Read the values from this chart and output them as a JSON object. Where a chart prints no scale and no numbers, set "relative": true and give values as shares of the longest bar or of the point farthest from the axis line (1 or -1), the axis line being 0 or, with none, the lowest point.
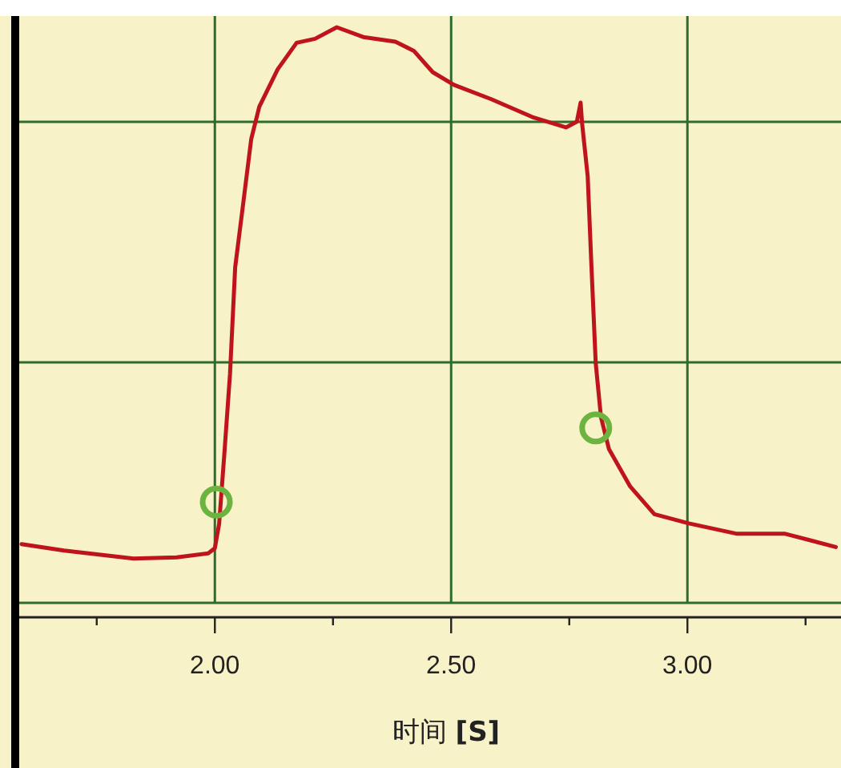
{
  "chart_data": {
    "type": "line",
    "relative": true,
    "xlabel": "时间 **[S]**",
    "xlim": [
      1.586,
      3.325
    ],
    "xticks": [
      {
        "value": 1.75,
        "label": null
      },
      {
        "value": 2,
        "label": "2.00"
      },
      {
        "value": 2.25,
        "label": null
      },
      {
        "value": 2.5,
        "label": "2.50"
      },
      {
        "value": 2.75,
        "label": null
      },
      {
        "value": 3,
        "label": "3.00"
      },
      {
        "value": 3.25,
        "label": null
      }
    ],
    "grid": true,
    "line_style": "solid",
    "series": [
      {
        "type": "line",
        "color": "#c0141c",
        "marker": "none",
        "x": [
          1.591,
          1.681,
          1.828,
          1.919,
          1.986,
          2.0,
          2.009,
          2.02,
          2.032,
          2.043,
          2.06,
          2.077,
          2.094,
          2.133,
          2.173,
          2.212,
          2.258,
          2.314,
          2.382,
          2.421,
          2.461,
          2.506,
          2.585,
          2.675,
          2.743,
          2.766,
          2.774,
          2.777,
          2.789,
          2.797,
          2.806,
          2.817,
          2.834,
          2.879,
          2.93,
          3.003,
          3.105,
          3.207,
          3.314
        ],
        "values": [
          0.102,
          0.091,
          0.077,
          0.079,
          0.086,
          0.095,
          0.137,
          0.258,
          0.397,
          0.583,
          0.694,
          0.806,
          0.862,
          0.927,
          0.973,
          0.98,
          1,
          0.983,
          0.975,
          0.959,
          0.922,
          0.9,
          0.875,
          0.843,
          0.826,
          0.836,
          0.869,
          0.834,
          0.741,
          0.583,
          0.416,
          0.323,
          0.267,
          0.202,
          0.154,
          0.138,
          0.12,
          0.12,
          0.097
        ]
      },
      {
        "type": "scatter",
        "color": "#6cb33f",
        "marker": "circle",
        "x": [
          2.003,
          2.806
        ],
        "values": [
          0.175,
          0.304
        ]
      }
    ]
  }
}
